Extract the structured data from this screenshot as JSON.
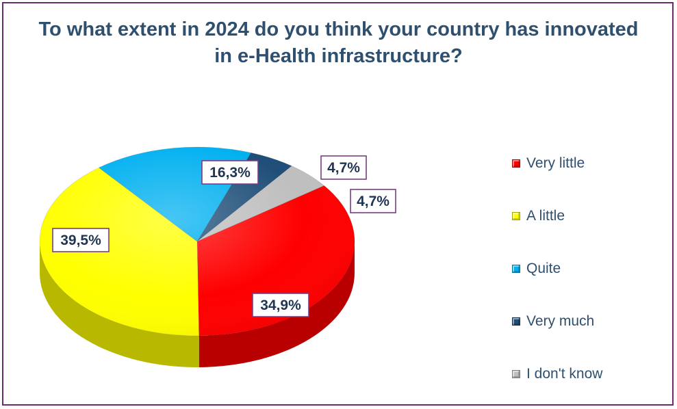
{
  "chart_data": {
    "type": "pie",
    "title": "To what extent in 2024 do you think your country has innovated in e-Health infrastructure?",
    "categories": [
      "Very little",
      "A little",
      "Quite",
      "Very much",
      "I don't know"
    ],
    "values": [
      34.9,
      39.5,
      16.3,
      4.7,
      4.7
    ],
    "labels": [
      "34,9%",
      "39,5%",
      "16,3%",
      "4,7%",
      "4,7%"
    ],
    "colors": [
      "#ff0000",
      "#ffff00",
      "#00b0f0",
      "#1f4e79",
      "#bfbfbf"
    ],
    "legend": "right"
  }
}
